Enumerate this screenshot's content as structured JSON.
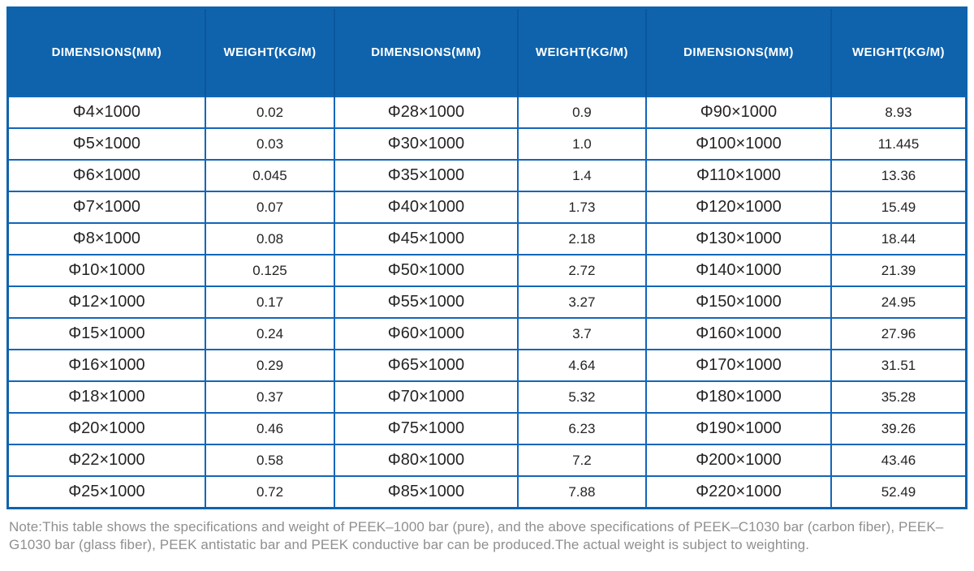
{
  "colors": {
    "header_bg": "#0f63ad",
    "header_separator": "#0b569c",
    "cell_border": "#1366b8",
    "cell_text": "#242424",
    "header_text": "#ffffff",
    "note_text": "#8f8f8f",
    "page_bg": "#ffffff"
  },
  "table": {
    "columns": [
      {
        "label": "DIMENSIONS(MM)"
      },
      {
        "label": "WEIGHT(KG/M)"
      },
      {
        "label": "DIMENSIONS(MM)"
      },
      {
        "label": "WEIGHT(KG/M)"
      },
      {
        "label": "DIMENSIONS(MM)"
      },
      {
        "label": "WEIGHT(KG/M)"
      }
    ],
    "rows": [
      [
        "Φ4×1000",
        "0.02",
        "Φ28×1000",
        "0.9",
        "Φ90×1000",
        "8.93"
      ],
      [
        "Φ5×1000",
        "0.03",
        "Φ30×1000",
        "1.0",
        "Φ100×1000",
        "11.445"
      ],
      [
        "Φ6×1000",
        "0.045",
        "Φ35×1000",
        "1.4",
        "Φ110×1000",
        "13.36"
      ],
      [
        "Φ7×1000",
        "0.07",
        "Φ40×1000",
        "1.73",
        "Φ120×1000",
        "15.49"
      ],
      [
        "Φ8×1000",
        "0.08",
        "Φ45×1000",
        "2.18",
        "Φ130×1000",
        "18.44"
      ],
      [
        "Φ10×1000",
        "0.125",
        "Φ50×1000",
        "2.72",
        "Φ140×1000",
        "21.39"
      ],
      [
        "Φ12×1000",
        "0.17",
        "Φ55×1000",
        "3.27",
        "Φ150×1000",
        "24.95"
      ],
      [
        "Φ15×1000",
        "0.24",
        "Φ60×1000",
        "3.7",
        "Φ160×1000",
        "27.96"
      ],
      [
        "Φ16×1000",
        "0.29",
        "Φ65×1000",
        "4.64",
        "Φ170×1000",
        "31.51"
      ],
      [
        "Φ18×1000",
        "0.37",
        "Φ70×1000",
        "5.32",
        "Φ180×1000",
        "35.28"
      ],
      [
        "Φ20×1000",
        "0.46",
        "Φ75×1000",
        "6.23",
        "Φ190×1000",
        "39.26"
      ],
      [
        "Φ22×1000",
        "0.58",
        "Φ80×1000",
        "7.2",
        "Φ200×1000",
        "43.46"
      ],
      [
        "Φ25×1000",
        "0.72",
        "Φ85×1000",
        "7.88",
        "Φ220×1000",
        "52.49"
      ]
    ]
  },
  "note": "Note:This table shows the specifications and weight of PEEK–1000 bar (pure), and the above specifications of PEEK–C1030 bar (carbon fiber), PEEK–G1030 bar (glass fiber), PEEK antistatic bar and PEEK conductive bar can be produced.The actual weight is subject to weighting."
}
